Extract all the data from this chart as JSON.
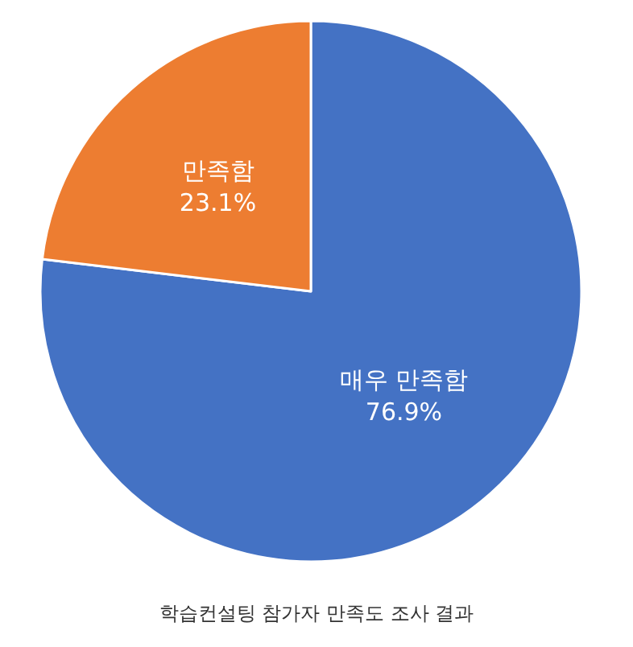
{
  "chart_data": {
    "type": "pie",
    "title": "학습컨설팅 참가자 만족도 조사 결과",
    "categories": [
      "매우 만족함",
      "만족함"
    ],
    "values": [
      76.9,
      23.1
    ],
    "value_labels": [
      "76.9%",
      "23.1%"
    ],
    "colors": [
      "#4472c4",
      "#ed7d31"
    ],
    "legend": false
  }
}
